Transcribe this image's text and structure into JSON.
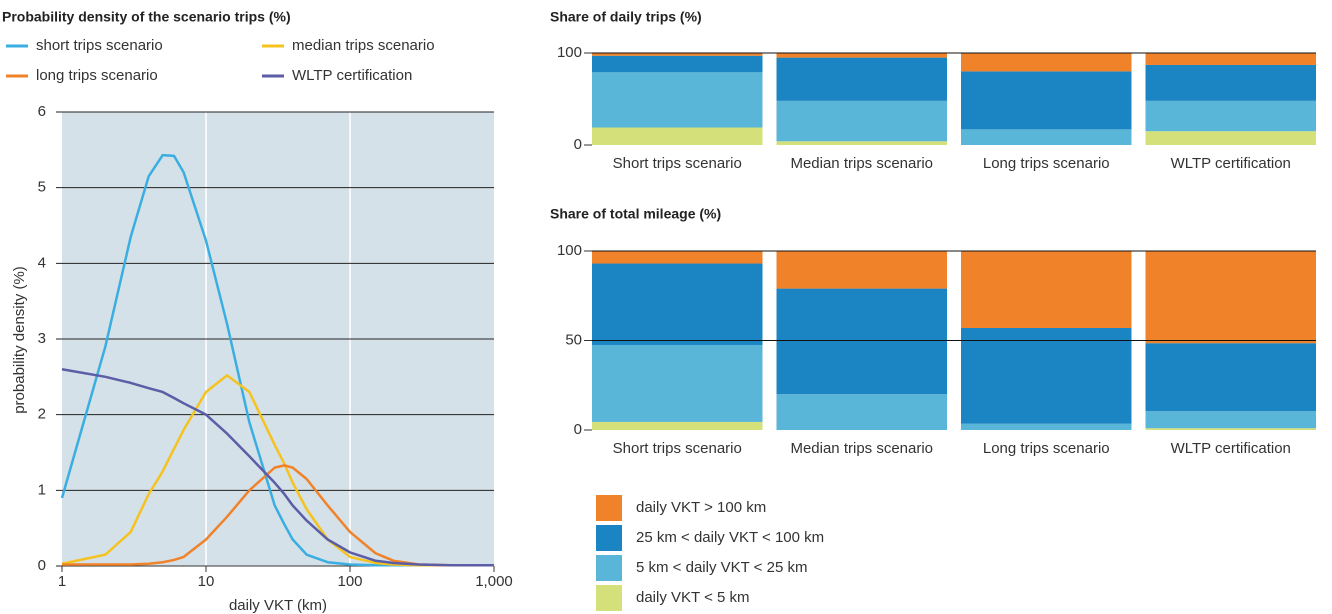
{
  "chart_data": [
    {
      "type": "line",
      "title": "Probability density of the scenario trips (%)",
      "x_label": "daily VKT (km)",
      "y_label": "probability density (%)",
      "x_scale": "log",
      "xlim": [
        1,
        1000
      ],
      "xticks": [
        1,
        10,
        100,
        {
          "value": 1000,
          "label": "1,000"
        }
      ],
      "ylim": [
        0,
        6
      ],
      "yticks": [
        0,
        1,
        2,
        3,
        4,
        5,
        6
      ],
      "grid": true,
      "background": "#d5e1e8",
      "legend": "top",
      "x": [
        1,
        2,
        3,
        4,
        5,
        6,
        7,
        10,
        14,
        20,
        30,
        35,
        40,
        50,
        70,
        100,
        150,
        200,
        300,
        500,
        1000
      ],
      "series": [
        {
          "name": "short trips scenario",
          "color": "#3aaee0",
          "values": [
            0.9,
            2.9,
            4.35,
            5.15,
            5.43,
            5.42,
            5.2,
            4.3,
            3.2,
            1.9,
            0.8,
            0.55,
            0.35,
            0.15,
            0.05,
            0.02,
            0.01,
            0.01,
            0.01,
            0.01,
            0.01
          ]
        },
        {
          "name": "median trips scenario",
          "color": "#f5c320",
          "values": [
            0.03,
            0.15,
            0.45,
            0.95,
            1.25,
            1.55,
            1.8,
            2.3,
            2.52,
            2.3,
            1.6,
            1.35,
            1.1,
            0.75,
            0.35,
            0.12,
            0.04,
            0.02,
            0.01,
            0.01,
            0.01
          ]
        },
        {
          "name": "long trips scenario",
          "color": "#f0822a",
          "values": [
            0.02,
            0.02,
            0.02,
            0.03,
            0.05,
            0.08,
            0.12,
            0.35,
            0.65,
            1.0,
            1.3,
            1.33,
            1.3,
            1.15,
            0.8,
            0.45,
            0.17,
            0.07,
            0.02,
            0.01,
            0.01
          ]
        },
        {
          "name": "WLTP certification",
          "color": "#5b5ea6",
          "values": [
            2.6,
            2.5,
            2.42,
            2.35,
            2.3,
            2.22,
            2.15,
            2.0,
            1.75,
            1.45,
            1.1,
            0.95,
            0.8,
            0.6,
            0.35,
            0.18,
            0.07,
            0.04,
            0.02,
            0.01,
            0.01
          ]
        }
      ]
    },
    {
      "type": "stacked_bar",
      "title": "Share of daily trips (%)",
      "categories": [
        "Short trips scenario",
        "Median trips scenario",
        "Long trips scenario",
        "WLTP certification"
      ],
      "ylim": [
        0,
        100
      ],
      "yticks": [
        0,
        100
      ],
      "grid": true,
      "series": [
        {
          "color": "#d4e17a",
          "values": [
            19,
            4,
            0,
            15
          ]
        },
        {
          "color": "#5ab6d8",
          "values": [
            60,
            44,
            17,
            33
          ]
        },
        {
          "color": "#1b84c2",
          "values": [
            18,
            47,
            63,
            39
          ]
        },
        {
          "color": "#f0822a",
          "values": [
            3,
            5,
            20,
            13
          ]
        }
      ]
    },
    {
      "type": "stacked_bar",
      "title": "Share of total mileage (%)",
      "categories": [
        "Short trips scenario",
        "Median trips scenario",
        "Long trips scenario",
        "WLTP certification"
      ],
      "ylim": [
        0,
        100
      ],
      "yticks": [
        0,
        50,
        100
      ],
      "grid": true,
      "legend": "bottom-left",
      "series": [
        {
          "name": "daily VKT < 5 km",
          "color": "#d4e17a",
          "values": [
            4.5,
            0,
            0,
            1
          ]
        },
        {
          "name": "5 km < daily VKT < 25 km",
          "color": "#5ab6d8",
          "values": [
            43,
            20,
            3.5,
            9.5
          ]
        },
        {
          "name": "25 km < daily VKT < 100 km",
          "color": "#1b84c2",
          "values": [
            45.5,
            59,
            53.5,
            38
          ]
        },
        {
          "name": "daily VKT > 100 km",
          "color": "#f0822a",
          "values": [
            7,
            21,
            43,
            51.5
          ]
        }
      ]
    }
  ]
}
